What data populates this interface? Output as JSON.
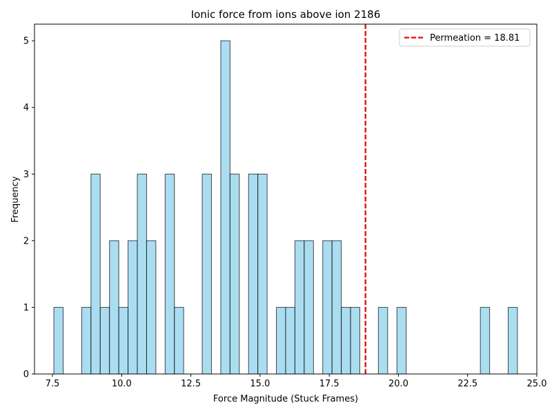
{
  "chart_data": {
    "type": "bar",
    "title": "Ionic force from ions above ion 2186",
    "xlabel": "Force Magnitude (Stuck Frames)",
    "ylabel": "Frequency",
    "xlim": [
      6.85,
      25.0
    ],
    "ylim": [
      0,
      5.25
    ],
    "xticks": [
      7.5,
      10.0,
      12.5,
      15.0,
      17.5,
      20.0,
      22.5,
      25.0
    ],
    "xtick_labels": [
      "7.5",
      "10.0",
      "12.5",
      "15.0",
      "17.5",
      "20.0",
      "22.5",
      "25.0"
    ],
    "yticks": [
      0,
      1,
      2,
      3,
      4,
      5
    ],
    "ytick_labels": [
      "0",
      "1",
      "2",
      "3",
      "4",
      "5"
    ],
    "bin_edges": [
      7.55,
      7.885,
      8.22,
      8.555,
      8.89,
      9.225,
      9.56,
      9.895,
      10.23,
      10.565,
      10.9,
      11.235,
      11.57,
      11.905,
      12.24,
      12.575,
      12.91,
      13.245,
      13.58,
      13.915,
      14.25,
      14.585,
      14.92,
      15.255,
      15.59,
      15.925,
      16.26,
      16.595,
      16.93,
      17.265,
      17.6,
      17.935,
      18.27,
      18.605,
      18.94,
      19.275,
      19.61,
      19.945,
      20.28,
      20.615,
      20.95,
      21.285,
      21.62,
      21.955,
      22.29,
      22.625,
      22.96,
      23.295,
      23.63,
      23.965,
      24.3
    ],
    "values": [
      1,
      0,
      0,
      1,
      3,
      1,
      2,
      1,
      2,
      3,
      2,
      0,
      3,
      1,
      0,
      0,
      3,
      0,
      5,
      3,
      0,
      3,
      3,
      0,
      1,
      1,
      2,
      2,
      0,
      2,
      2,
      1,
      1,
      0,
      0,
      1,
      0,
      1,
      0,
      0,
      0,
      0,
      0,
      0,
      0,
      0,
      1,
      0,
      0,
      1
    ],
    "bar_color": "#87ceeb",
    "bar_edge_color": "#000000",
    "threshold": {
      "value": 18.81,
      "label": "Permeation = 18.81",
      "color": "#e31a1c",
      "style": "dashed"
    },
    "legend_position": "top-right",
    "grid": false
  }
}
